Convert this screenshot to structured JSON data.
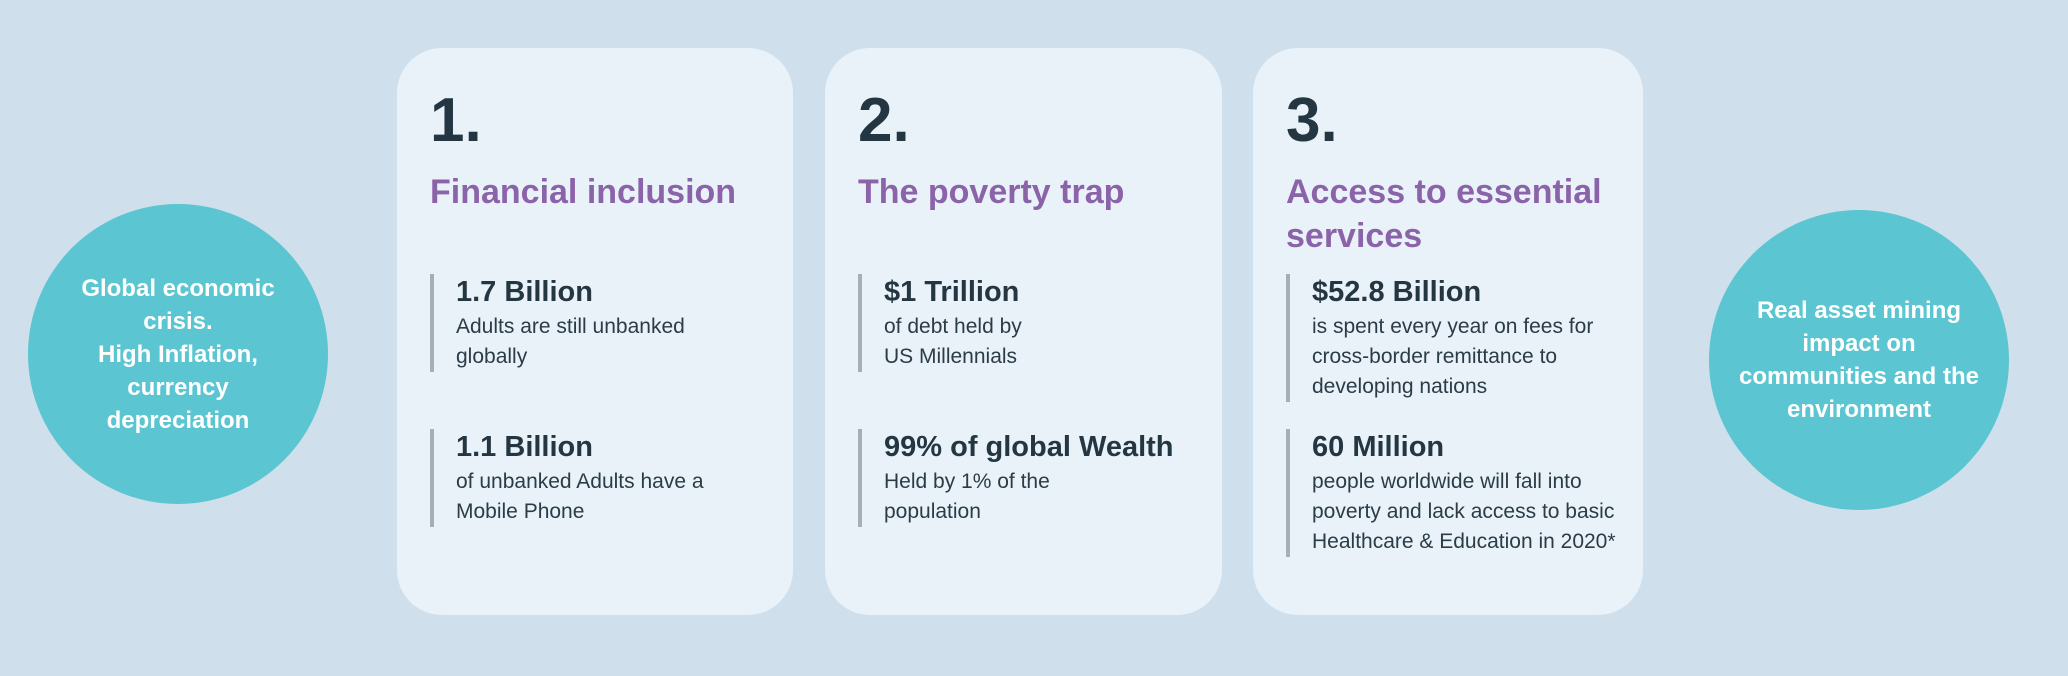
{
  "colors": {
    "background": "#CFDFEC",
    "card_bg": "#E9F2F9",
    "teal": "#5BC5D1",
    "purple": "#8B63A9",
    "dark": "#243642",
    "desc": "#2B3C47",
    "bar_gray": "#A9AEB3",
    "circle_text": "#FFFFFF"
  },
  "circles": {
    "left": {
      "text": "Global economic\ncrisis.\nHigh Inflation,\ncurrency\ndepreciation"
    },
    "right": {
      "text": "Real asset  mining\nimpact on\ncommunities and the\nenvironment"
    }
  },
  "cards": [
    {
      "number": "1.",
      "title": "Financial inclusion",
      "stats": [
        {
          "value": "1.7 Billion",
          "desc": "Adults are still unbanked\nglobally"
        },
        {
          "value": "1.1 Billion",
          "desc": "of unbanked Adults have a\nMobile Phone"
        }
      ]
    },
    {
      "number": "2.",
      "title": "The poverty trap",
      "stats": [
        {
          "value": "$1 Trillion",
          "desc": "of debt held by\nUS Millennials"
        },
        {
          "value": "99% of global Wealth",
          "desc": "Held by 1% of the\npopulation"
        }
      ]
    },
    {
      "number": "3.",
      "title": "Access to essential\nservices",
      "stats": [
        {
          "value": "$52.8 Billion",
          "desc": "is spent every year on fees for\ncross-border remittance to\ndeveloping nations"
        },
        {
          "value": "60 Million",
          "desc": "people worldwide will fall into\npoverty and lack access to basic\nHealthcare & Education in 2020*"
        }
      ]
    }
  ]
}
